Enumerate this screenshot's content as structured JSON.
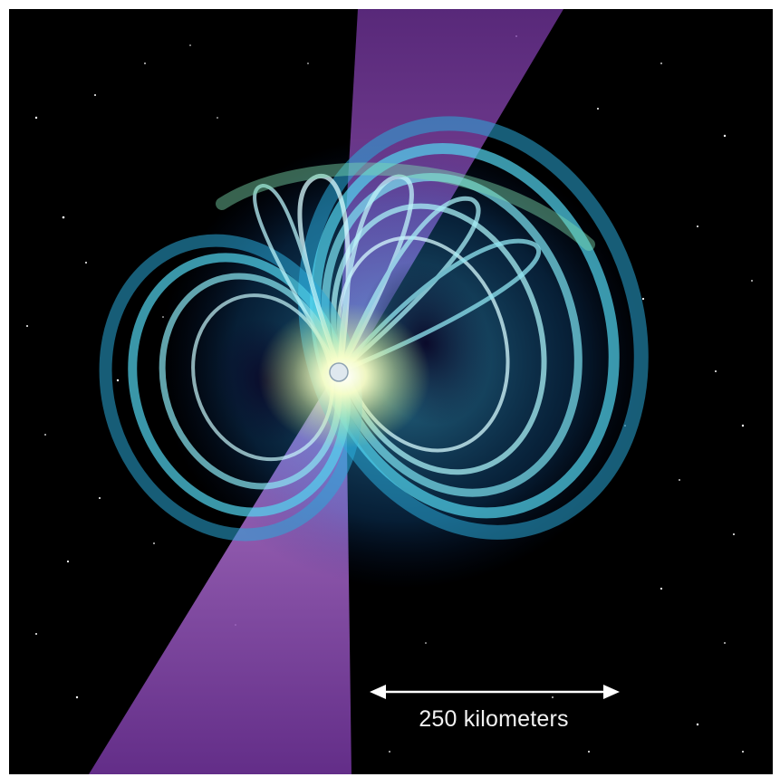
{
  "illustration": {
    "subject": "neutron-star-magnetic-field",
    "colors": {
      "space": "#000000",
      "beam": "#8a3fb3",
      "field_lines": "#35c6e8",
      "core_glow": "#fbffc8"
    }
  },
  "scale_bar": {
    "label": "250 kilometers"
  }
}
